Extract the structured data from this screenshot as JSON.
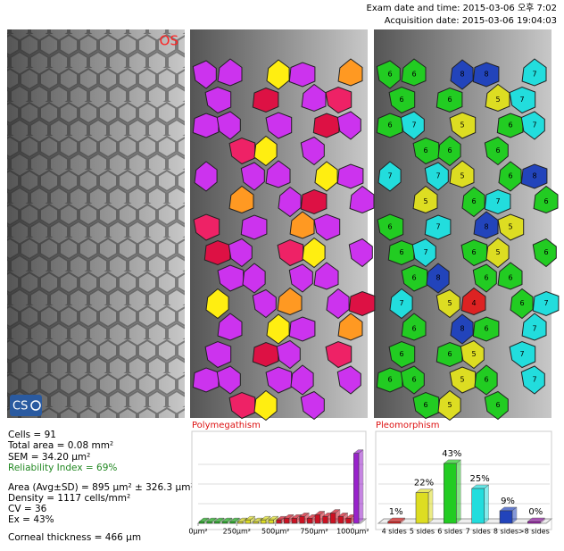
{
  "header": {
    "exam_date": "Exam date and time: 2015-03-06 오후 7:02",
    "acquisition_date": "Acquisition date: 2015-03-06 19:04:03"
  },
  "images": {
    "eye": "OS",
    "logo": "CS"
  },
  "cell_sides": [
    6,
    6,
    8,
    8,
    7,
    6,
    6,
    5,
    7,
    6,
    7,
    5,
    6,
    7,
    6,
    6,
    6,
    7,
    7,
    5,
    6,
    8,
    5,
    6,
    7,
    6,
    6,
    7,
    8,
    5,
    6,
    7,
    6,
    5,
    6,
    6,
    8,
    6,
    6,
    7,
    5,
    4,
    6,
    7,
    6,
    8,
    6,
    7,
    6,
    6,
    5,
    7,
    6,
    6,
    5,
    6,
    7,
    6,
    5,
    6
  ],
  "stats": [
    "Cells = 91",
    "Total area = 0.08 mm²",
    "SEM = 34.20 µm²",
    "Reliability Index = 69%",
    "Area (Avg±SD) = 895 µm² ± 326.3 µm²",
    "Density = 1117 cells/mm²",
    "CV = 36",
    "Ex = 43%",
    "Corneal thickness = 466 µm"
  ],
  "chart_data": [
    {
      "type": "histogram",
      "title": "Polymegathism",
      "bins": [
        0,
        50,
        100,
        150,
        200,
        250,
        300,
        350,
        400,
        450,
        500,
        550,
        600,
        650,
        700,
        750,
        800,
        850,
        900,
        950,
        1000,
        1050
      ],
      "values": [
        1,
        1,
        1,
        1,
        1,
        1,
        2,
        1,
        2,
        2,
        2,
        3,
        3,
        4,
        3,
        5,
        4,
        6,
        4,
        3,
        41
      ],
      "colors": [
        "#22bb22",
        "#22bb22",
        "#22bb22",
        "#22bb22",
        "#22bb22",
        "#dddd22",
        "#dddd22",
        "#dddd22",
        "#dddd22",
        "#dddd22",
        "#cc1122",
        "#cc1122",
        "#cc1122",
        "#cc1122",
        "#cc1122",
        "#cc1122",
        "#cc1122",
        "#cc1122",
        "#cc1122",
        "#cc1122",
        "#9922cc"
      ],
      "xlim": [
        0,
        1050
      ],
      "xticks": [
        {
          "value": 0,
          "label": "0µm²"
        },
        {
          "value": 250,
          "label": "250µm²"
        },
        {
          "value": 500,
          "label": "500µm²"
        },
        {
          "value": 750,
          "label": "750µm²"
        },
        {
          "value": 1000,
          "label": "1000µm²"
        }
      ],
      "ylim": [
        0,
        45
      ]
    },
    {
      "type": "bar",
      "title": "Pleomorphism",
      "categories": [
        "4 sides",
        "5 sides",
        "6 sides",
        "7 sides",
        "8 sides",
        ">8 sides"
      ],
      "values": [
        1,
        22,
        43,
        25,
        9,
        0
      ],
      "value_labels": [
        "1%",
        "22%",
        "43%",
        "25%",
        "9%",
        "0%"
      ],
      "colors": [
        "#dd2222",
        "#dddd22",
        "#22cc22",
        "#22dddd",
        "#2244bb",
        "#9922aa"
      ],
      "ylim": [
        0,
        50
      ]
    }
  ]
}
